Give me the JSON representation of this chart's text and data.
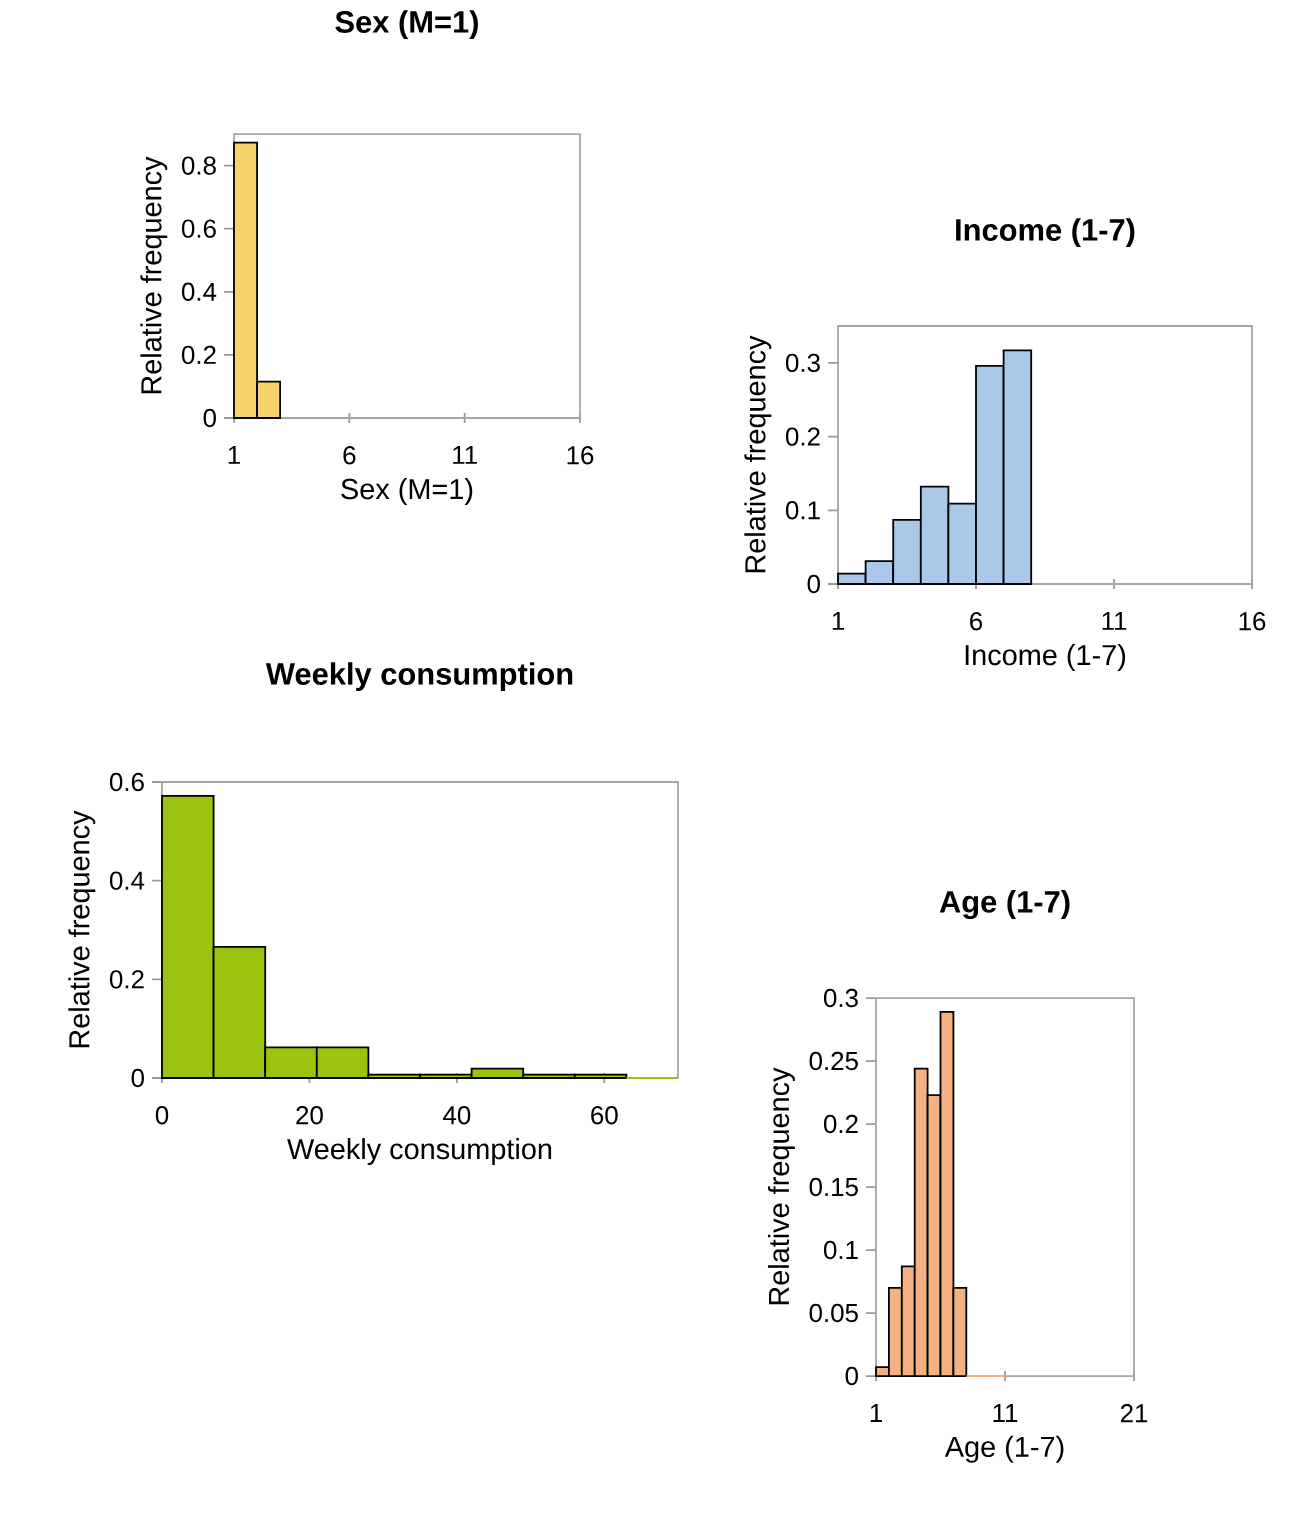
{
  "chart_data": [
    {
      "type": "histogram",
      "title": "Sex (M=1)",
      "xlabel": "Sex (M=1)",
      "ylabel": "Relative frequency",
      "bins": [
        1,
        2,
        3
      ],
      "values": [
        0.873,
        0.115
      ],
      "color": "#f7d26b",
      "xlim": [
        1,
        16
      ],
      "xticks": [
        1,
        6,
        11,
        16
      ],
      "ylim": [
        0,
        0.9
      ],
      "yticks": [
        0,
        0.2,
        0.4,
        0.6,
        0.8
      ]
    },
    {
      "type": "histogram",
      "title": "Income (1-7)",
      "xlabel": "Income (1-7)",
      "ylabel": "Relative frequency",
      "bins": [
        1,
        2,
        3,
        4,
        5,
        6,
        7,
        8
      ],
      "values": [
        0.014,
        0.031,
        0.087,
        0.132,
        0.109,
        0.296,
        0.317
      ],
      "color": "#a9c8ea",
      "xlim": [
        1,
        16
      ],
      "xticks": [
        1,
        6,
        11,
        16
      ],
      "ylim": [
        0,
        0.35
      ],
      "yticks": [
        0,
        0.1,
        0.2,
        0.3
      ]
    },
    {
      "type": "histogram",
      "title": "Weekly consumption",
      "xlabel": "Weekly consumption",
      "ylabel": "Relative frequency",
      "bins": [
        0,
        7,
        14,
        21,
        28,
        35,
        42,
        49,
        56,
        63,
        70
      ],
      "values": [
        0.572,
        0.266,
        0.062,
        0.062,
        0.007,
        0.007,
        0.019,
        0.007,
        0.007,
        0
      ],
      "color": "#9bc40e",
      "xlim": [
        0,
        70
      ],
      "xticks": [
        0,
        20,
        40,
        60
      ],
      "ylim": [
        0,
        0.6
      ],
      "yticks": [
        0,
        0.2,
        0.4,
        0.6
      ]
    },
    {
      "type": "histogram",
      "title": "Age (1-7)",
      "xlabel": "Age (1-7)",
      "ylabel": "Relative frequency",
      "bins": [
        1,
        2,
        3,
        4,
        5,
        6,
        7,
        8,
        9,
        10,
        11
      ],
      "values": [
        0.007,
        0.07,
        0.087,
        0.244,
        0.223,
        0.289,
        0.07,
        0,
        0,
        0
      ],
      "color": "#f4b183",
      "xlim": [
        1,
        21
      ],
      "xticks": [
        1,
        11,
        21
      ],
      "ylim": [
        0,
        0.3
      ],
      "yticks": [
        0,
        0.05,
        0.1,
        0.15,
        0.2,
        0.25,
        0.3
      ]
    }
  ]
}
